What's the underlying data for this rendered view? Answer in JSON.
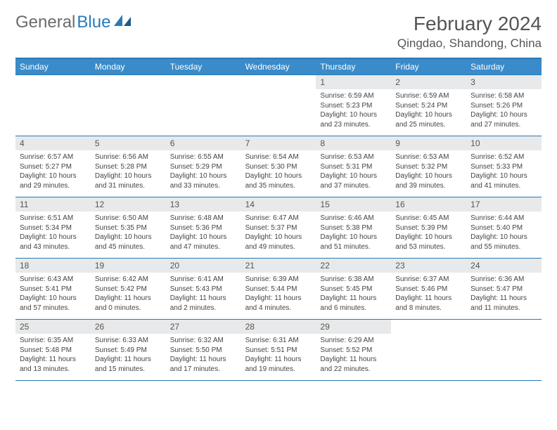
{
  "logo": {
    "text1": "General",
    "text2": "Blue"
  },
  "title": {
    "month": "February 2024",
    "location": "Qingdao, Shandong, China"
  },
  "colors": {
    "header_bg": "#3a8bc9",
    "border": "#2a7ab9",
    "daynum_bg": "#e8e9ea",
    "text": "#444",
    "title_text": "#555"
  },
  "weekdays": [
    "Sunday",
    "Monday",
    "Tuesday",
    "Wednesday",
    "Thursday",
    "Friday",
    "Saturday"
  ],
  "weeks": [
    [
      {
        "n": "",
        "sunrise": "",
        "sunset": "",
        "daylight": ""
      },
      {
        "n": "",
        "sunrise": "",
        "sunset": "",
        "daylight": ""
      },
      {
        "n": "",
        "sunrise": "",
        "sunset": "",
        "daylight": ""
      },
      {
        "n": "",
        "sunrise": "",
        "sunset": "",
        "daylight": ""
      },
      {
        "n": "1",
        "sunrise": "Sunrise: 6:59 AM",
        "sunset": "Sunset: 5:23 PM",
        "daylight": "Daylight: 10 hours and 23 minutes."
      },
      {
        "n": "2",
        "sunrise": "Sunrise: 6:59 AM",
        "sunset": "Sunset: 5:24 PM",
        "daylight": "Daylight: 10 hours and 25 minutes."
      },
      {
        "n": "3",
        "sunrise": "Sunrise: 6:58 AM",
        "sunset": "Sunset: 5:26 PM",
        "daylight": "Daylight: 10 hours and 27 minutes."
      }
    ],
    [
      {
        "n": "4",
        "sunrise": "Sunrise: 6:57 AM",
        "sunset": "Sunset: 5:27 PM",
        "daylight": "Daylight: 10 hours and 29 minutes."
      },
      {
        "n": "5",
        "sunrise": "Sunrise: 6:56 AM",
        "sunset": "Sunset: 5:28 PM",
        "daylight": "Daylight: 10 hours and 31 minutes."
      },
      {
        "n": "6",
        "sunrise": "Sunrise: 6:55 AM",
        "sunset": "Sunset: 5:29 PM",
        "daylight": "Daylight: 10 hours and 33 minutes."
      },
      {
        "n": "7",
        "sunrise": "Sunrise: 6:54 AM",
        "sunset": "Sunset: 5:30 PM",
        "daylight": "Daylight: 10 hours and 35 minutes."
      },
      {
        "n": "8",
        "sunrise": "Sunrise: 6:53 AM",
        "sunset": "Sunset: 5:31 PM",
        "daylight": "Daylight: 10 hours and 37 minutes."
      },
      {
        "n": "9",
        "sunrise": "Sunrise: 6:53 AM",
        "sunset": "Sunset: 5:32 PM",
        "daylight": "Daylight: 10 hours and 39 minutes."
      },
      {
        "n": "10",
        "sunrise": "Sunrise: 6:52 AM",
        "sunset": "Sunset: 5:33 PM",
        "daylight": "Daylight: 10 hours and 41 minutes."
      }
    ],
    [
      {
        "n": "11",
        "sunrise": "Sunrise: 6:51 AM",
        "sunset": "Sunset: 5:34 PM",
        "daylight": "Daylight: 10 hours and 43 minutes."
      },
      {
        "n": "12",
        "sunrise": "Sunrise: 6:50 AM",
        "sunset": "Sunset: 5:35 PM",
        "daylight": "Daylight: 10 hours and 45 minutes."
      },
      {
        "n": "13",
        "sunrise": "Sunrise: 6:48 AM",
        "sunset": "Sunset: 5:36 PM",
        "daylight": "Daylight: 10 hours and 47 minutes."
      },
      {
        "n": "14",
        "sunrise": "Sunrise: 6:47 AM",
        "sunset": "Sunset: 5:37 PM",
        "daylight": "Daylight: 10 hours and 49 minutes."
      },
      {
        "n": "15",
        "sunrise": "Sunrise: 6:46 AM",
        "sunset": "Sunset: 5:38 PM",
        "daylight": "Daylight: 10 hours and 51 minutes."
      },
      {
        "n": "16",
        "sunrise": "Sunrise: 6:45 AM",
        "sunset": "Sunset: 5:39 PM",
        "daylight": "Daylight: 10 hours and 53 minutes."
      },
      {
        "n": "17",
        "sunrise": "Sunrise: 6:44 AM",
        "sunset": "Sunset: 5:40 PM",
        "daylight": "Daylight: 10 hours and 55 minutes."
      }
    ],
    [
      {
        "n": "18",
        "sunrise": "Sunrise: 6:43 AM",
        "sunset": "Sunset: 5:41 PM",
        "daylight": "Daylight: 10 hours and 57 minutes."
      },
      {
        "n": "19",
        "sunrise": "Sunrise: 6:42 AM",
        "sunset": "Sunset: 5:42 PM",
        "daylight": "Daylight: 11 hours and 0 minutes."
      },
      {
        "n": "20",
        "sunrise": "Sunrise: 6:41 AM",
        "sunset": "Sunset: 5:43 PM",
        "daylight": "Daylight: 11 hours and 2 minutes."
      },
      {
        "n": "21",
        "sunrise": "Sunrise: 6:39 AM",
        "sunset": "Sunset: 5:44 PM",
        "daylight": "Daylight: 11 hours and 4 minutes."
      },
      {
        "n": "22",
        "sunrise": "Sunrise: 6:38 AM",
        "sunset": "Sunset: 5:45 PM",
        "daylight": "Daylight: 11 hours and 6 minutes."
      },
      {
        "n": "23",
        "sunrise": "Sunrise: 6:37 AM",
        "sunset": "Sunset: 5:46 PM",
        "daylight": "Daylight: 11 hours and 8 minutes."
      },
      {
        "n": "24",
        "sunrise": "Sunrise: 6:36 AM",
        "sunset": "Sunset: 5:47 PM",
        "daylight": "Daylight: 11 hours and 11 minutes."
      }
    ],
    [
      {
        "n": "25",
        "sunrise": "Sunrise: 6:35 AM",
        "sunset": "Sunset: 5:48 PM",
        "daylight": "Daylight: 11 hours and 13 minutes."
      },
      {
        "n": "26",
        "sunrise": "Sunrise: 6:33 AM",
        "sunset": "Sunset: 5:49 PM",
        "daylight": "Daylight: 11 hours and 15 minutes."
      },
      {
        "n": "27",
        "sunrise": "Sunrise: 6:32 AM",
        "sunset": "Sunset: 5:50 PM",
        "daylight": "Daylight: 11 hours and 17 minutes."
      },
      {
        "n": "28",
        "sunrise": "Sunrise: 6:31 AM",
        "sunset": "Sunset: 5:51 PM",
        "daylight": "Daylight: 11 hours and 19 minutes."
      },
      {
        "n": "29",
        "sunrise": "Sunrise: 6:29 AM",
        "sunset": "Sunset: 5:52 PM",
        "daylight": "Daylight: 11 hours and 22 minutes."
      },
      {
        "n": "",
        "sunrise": "",
        "sunset": "",
        "daylight": ""
      },
      {
        "n": "",
        "sunrise": "",
        "sunset": "",
        "daylight": ""
      }
    ]
  ]
}
